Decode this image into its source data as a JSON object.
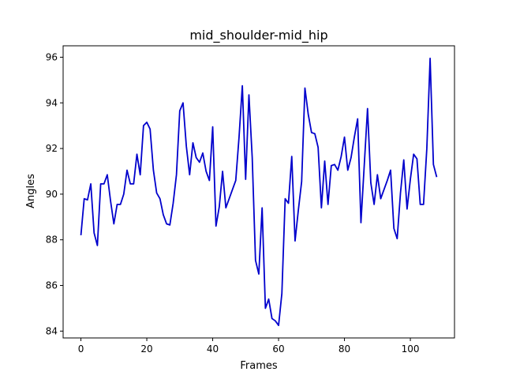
{
  "chart_data": {
    "type": "line",
    "title": "mid_shoulder-mid_hip",
    "xlabel": "Frames",
    "ylabel": "Angles",
    "xlim": [
      -5.4,
      113.4
    ],
    "ylim": [
      83.7,
      96.5
    ],
    "xticks": [
      0,
      20,
      40,
      60,
      80,
      100
    ],
    "yticks": [
      84,
      86,
      88,
      90,
      92,
      94,
      96
    ],
    "grid": false,
    "line_color": "#0000cc",
    "series": [
      {
        "x": [
          0,
          1,
          2,
          3,
          4,
          5,
          6,
          7,
          8,
          9,
          10,
          11,
          12,
          13,
          14,
          15,
          16,
          17,
          18,
          19,
          20,
          21,
          22,
          23,
          24,
          25,
          26,
          27,
          28,
          29,
          30,
          31,
          32,
          33,
          34,
          35,
          36,
          37,
          38,
          39,
          40,
          41,
          42,
          43,
          44,
          45,
          46,
          47,
          48,
          49,
          50,
          51,
          52,
          53,
          54,
          55,
          56,
          57,
          58,
          59,
          60,
          61,
          62,
          63,
          64,
          65,
          66,
          67,
          68,
          69,
          70,
          71,
          72,
          73,
          74,
          75,
          76,
          77,
          78,
          79,
          80,
          81,
          82,
          83,
          84,
          85,
          86,
          87,
          88,
          89,
          90,
          91,
          92,
          93,
          94,
          95,
          96,
          97,
          98,
          99,
          100,
          101,
          102,
          103,
          104,
          105,
          106,
          107,
          108
        ],
        "values": [
          88.2,
          89.8,
          89.75,
          90.45,
          88.3,
          87.75,
          90.45,
          90.45,
          90.85,
          89.7,
          88.7,
          89.55,
          89.55,
          90.0,
          91.05,
          90.45,
          90.45,
          91.75,
          90.85,
          93.0,
          93.15,
          92.85,
          91.05,
          90.05,
          89.8,
          89.1,
          88.7,
          88.65,
          89.6,
          90.85,
          93.65,
          94.0,
          92.1,
          90.85,
          92.25,
          91.6,
          91.4,
          91.8,
          91.0,
          90.6,
          92.95,
          88.6,
          89.45,
          91.0,
          89.4,
          89.8,
          90.2,
          90.6,
          92.5,
          94.75,
          90.65,
          94.35,
          91.6,
          87.1,
          86.5,
          89.4,
          85.0,
          85.4,
          84.55,
          84.45,
          84.25,
          85.65,
          89.8,
          89.6,
          91.65,
          87.95,
          89.3,
          90.55,
          94.65,
          93.5,
          92.7,
          92.65,
          92.05,
          89.4,
          91.45,
          89.55,
          91.25,
          91.3,
          91.05,
          91.65,
          92.5,
          91.05,
          91.6,
          92.5,
          93.3,
          88.75,
          91.25,
          93.75,
          90.5,
          89.55,
          90.85,
          89.8,
          90.2,
          90.6,
          91.05,
          88.5,
          88.05,
          90.05,
          91.5,
          89.35,
          90.65,
          91.75,
          91.55,
          89.55,
          89.55,
          92.0,
          95.95,
          91.3,
          90.75
        ]
      }
    ]
  }
}
